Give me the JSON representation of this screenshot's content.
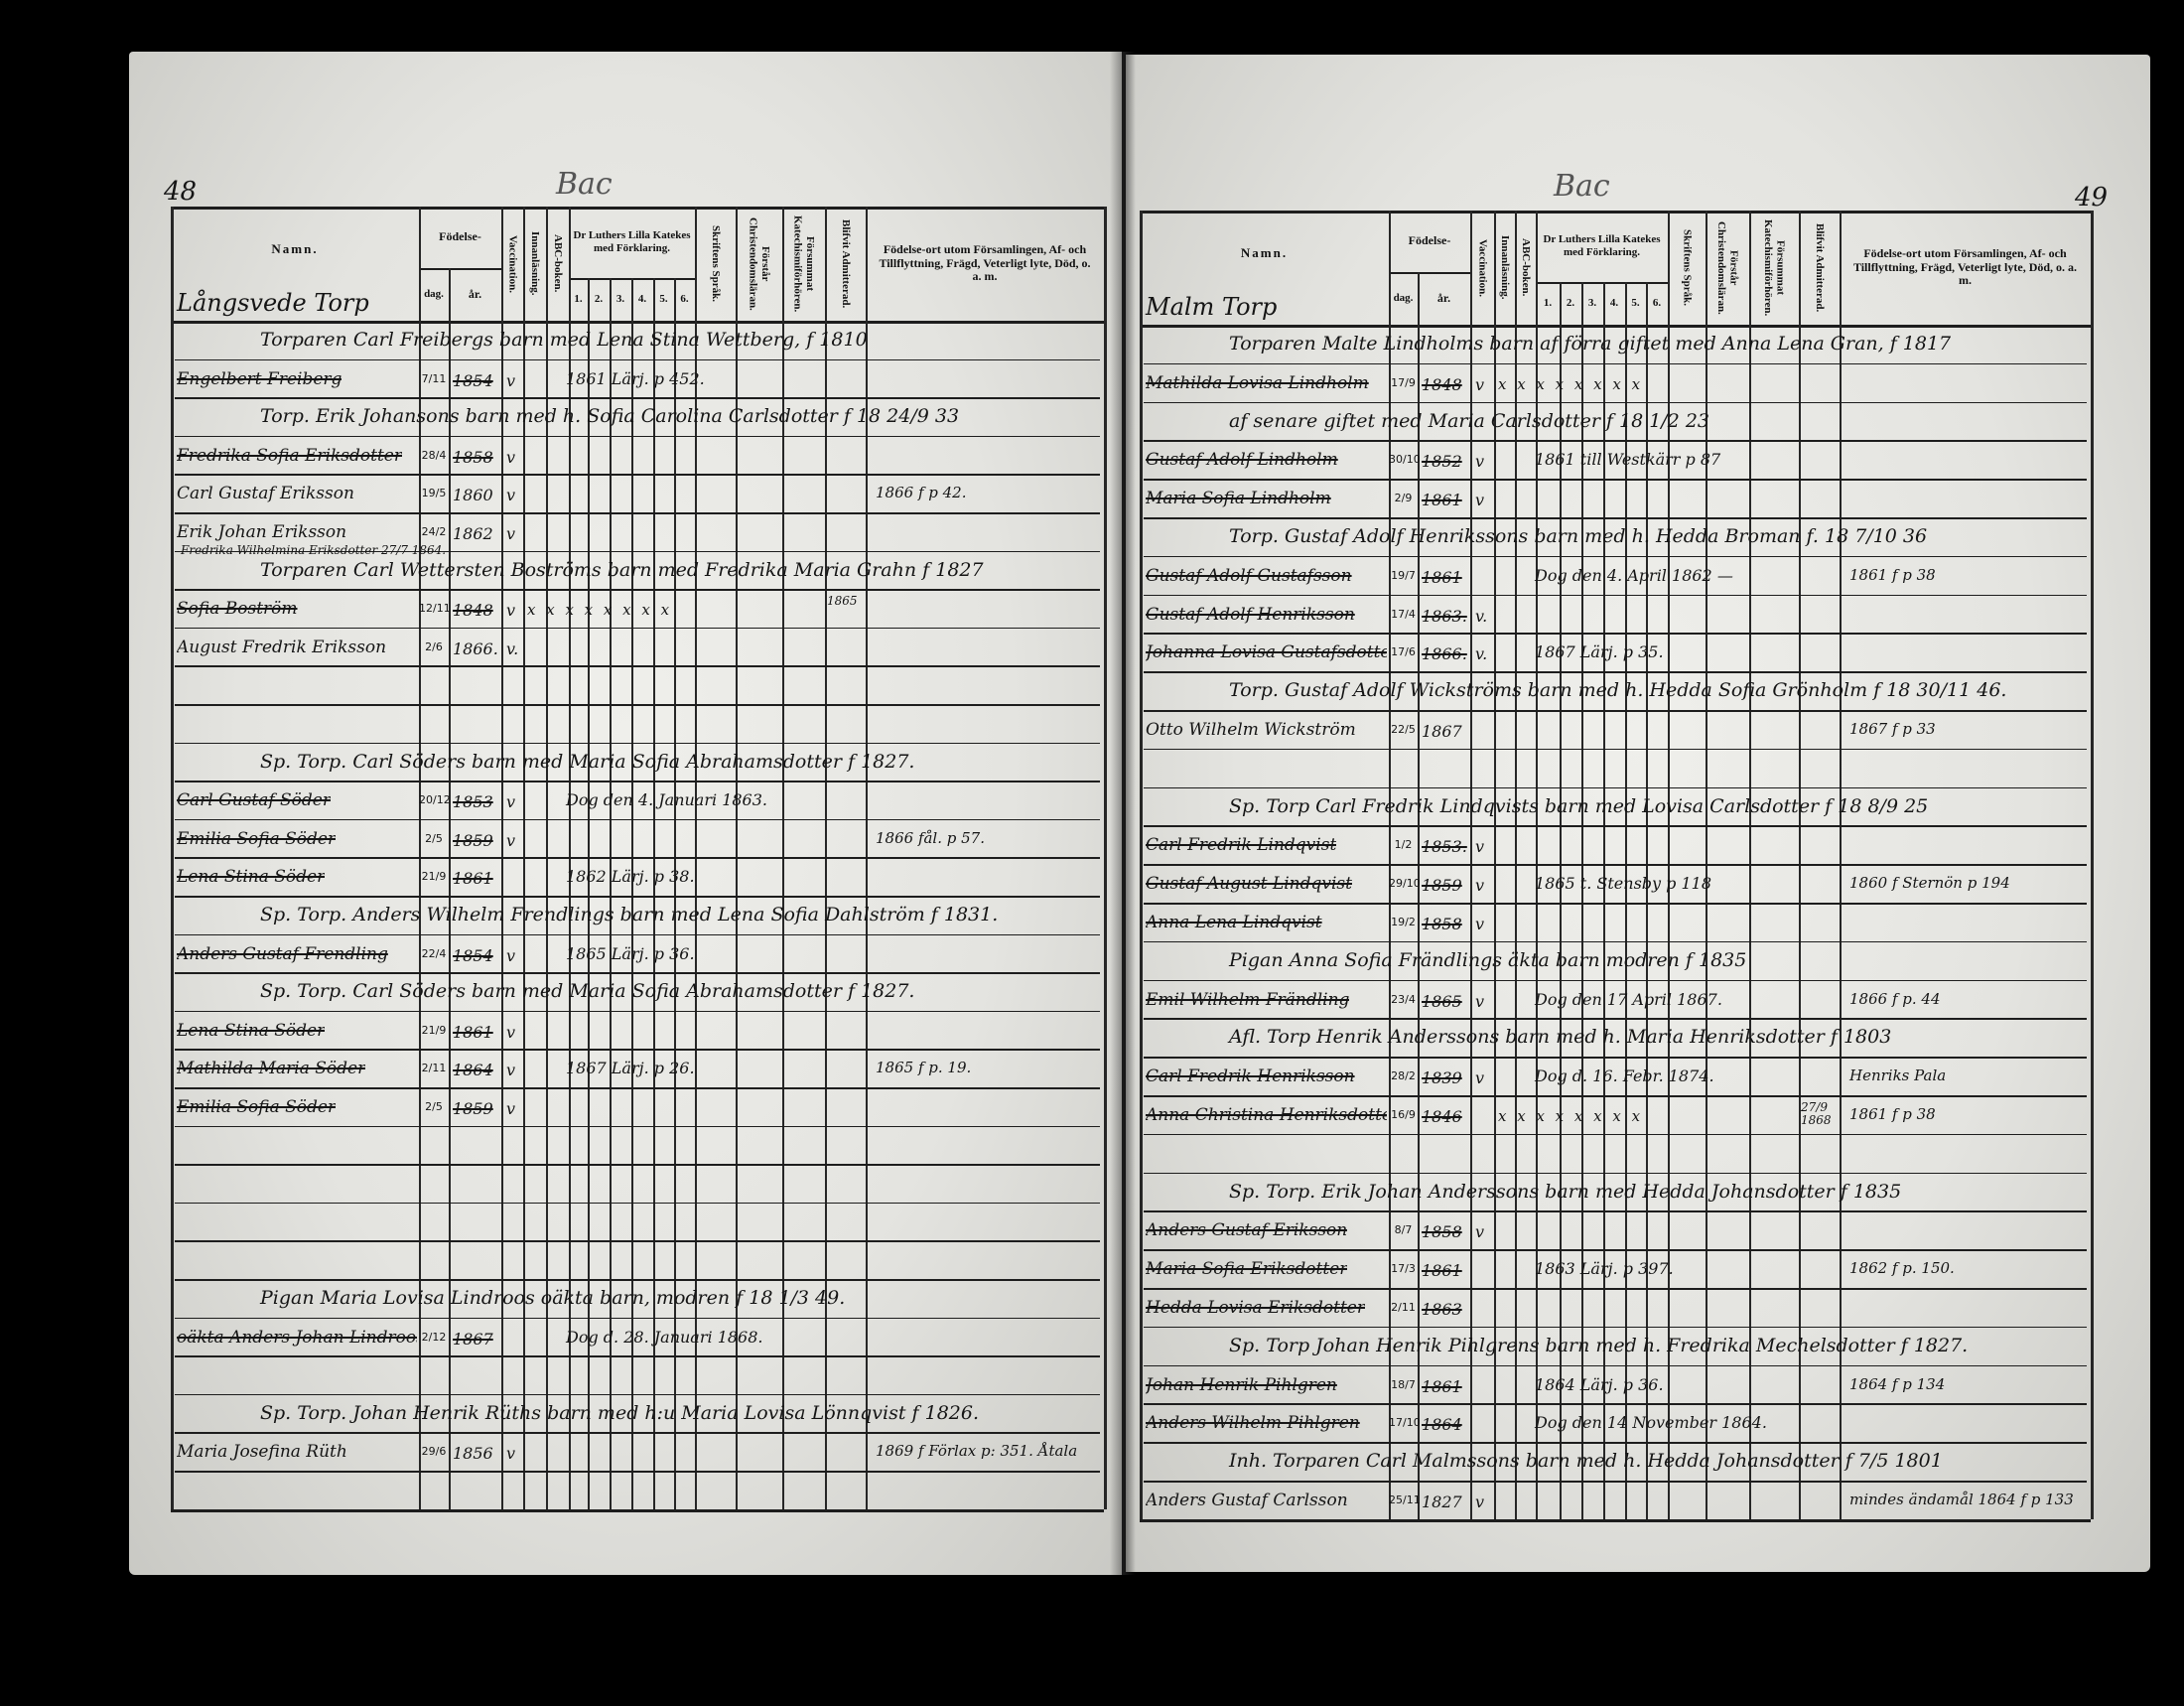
{
  "headers": {
    "namn": "Namn.",
    "fodelse": "Födelse-",
    "dag": "dag.",
    "ar": "år.",
    "vaccination": "Vaccination.",
    "innanlasning": "Innanläsning.",
    "abc": "ABC-boken.",
    "katekes": "Dr Luthers Lilla Katekes med Förklaring.",
    "katekes_parts": [
      "1.",
      "2.",
      "3.",
      "4.",
      "5.",
      "6."
    ],
    "skriftens": "Skriftens Språk.",
    "forstar": "Förstår Christendomsläran.",
    "forsummat": "Försummat Katechismiförhören.",
    "blifvit": "Blifvit Admitterad.",
    "fodelseort": "Födelse-ort utom Församlingen, Af- och Tillflyttning, Frägd, Veterligt lyte, Död, o. a. m."
  },
  "left_page": {
    "page_number": "48",
    "top_note": "Bac",
    "place": "Långsvede Torp",
    "rows": [
      {
        "type": "family",
        "text": "Torparen Carl Freibergs barn med Lena Stina Wettberg, f 1810"
      },
      {
        "type": "person",
        "name": "Engelbert Freiberg",
        "dag": "7/11",
        "ar": "1854",
        "vacc": "v",
        "mid": "1861 Lärj. p 452.",
        "struck": true
      },
      {
        "type": "family",
        "text": "Torp. Erik Johansons barn med h. Sofia Carolina Carlsdotter f 18 24/9 33"
      },
      {
        "type": "person",
        "name": "Fredrika Sofia Eriksdotter",
        "dag": "28/4",
        "ar": "1858",
        "vacc": "v",
        "struck": true
      },
      {
        "type": "person",
        "name": "Carl Gustaf Eriksson",
        "dag": "19/5",
        "ar": "1860",
        "vacc": "v",
        "remark": "1866 f p 42."
      },
      {
        "type": "person",
        "name": "Erik Johan Eriksson",
        "dag": "24/2",
        "ar": "1862",
        "vacc": "v",
        "extra": "Fredrika Wilhelmina Eriksdotter  27/7 1864."
      },
      {
        "type": "family",
        "text": "Torparen Carl Wettersten Boströms barn med Fredrika Maria Grahn f 1827"
      },
      {
        "type": "person",
        "name": "Sofia Boström",
        "dag": "12/11",
        "ar": "1848",
        "vacc": "v",
        "marks": "x x x x x x x x",
        "blifvit": "1865",
        "struck": true
      },
      {
        "type": "person",
        "name": "August Fredrik Eriksson",
        "dag": "2/6",
        "ar": "1866.",
        "vacc": "v."
      },
      {},
      {},
      {
        "type": "family",
        "text": "Sp. Torp. Carl Söders barn med Maria Sofia Abrahamsdotter f 1827."
      },
      {
        "type": "person",
        "name": "Carl Gustaf Söder",
        "dag": "20/12",
        "ar": "1853",
        "vacc": "v",
        "mid": "Dog den 4. Januari 1863.",
        "struck": true
      },
      {
        "type": "person",
        "name": "Emilia Sofia Söder",
        "dag": "2/5",
        "ar": "1859",
        "vacc": "v",
        "remark": "1866 fål. p 57.",
        "struck": true
      },
      {
        "type": "person",
        "name": "Lena Stina Söder",
        "dag": "21/9",
        "ar": "1861",
        "mid": "1862 Lärj. p 38.",
        "struck": true
      },
      {
        "type": "family",
        "text": "Sp. Torp. Anders Wilhelm Frendlings barn med Lena Sofia Dahlström f 1831."
      },
      {
        "type": "person",
        "name": "Anders Gustaf Frendling",
        "dag": "22/4",
        "ar": "1854",
        "vacc": "v",
        "mid": "1865 Lärj. p 36.",
        "struck": true
      },
      {
        "type": "family",
        "text": "Sp. Torp. Carl Söders barn med Maria Sofia Abrahamsdotter f 1827."
      },
      {
        "type": "person",
        "name": "Lena Stina Söder",
        "dag": "21/9",
        "ar": "1861",
        "vacc": "v",
        "struck": true
      },
      {
        "type": "person",
        "name": "Mathilda Maria Söder",
        "dag": "2/11",
        "ar": "1864",
        "vacc": "v",
        "mid": "1867 Lärj. p 26.",
        "remark": "1865 f p. 19.",
        "struck": true
      },
      {
        "type": "person",
        "name": "Emilia Sofia Söder",
        "dag": "2/5",
        "ar": "1859",
        "vacc": "v",
        "struck": true
      },
      {},
      {},
      {},
      {},
      {
        "type": "family",
        "text": "Pigan Maria Lovisa Lindroos oäkta barn, modren f 18 1/3 49."
      },
      {
        "type": "person",
        "name": "oäkta Anders Johan Lindroos",
        "dag": "2/12",
        "ar": "1867",
        "mid": "Dog d. 28. Januari 1868.",
        "struck": true
      },
      {},
      {
        "type": "family",
        "text": "Sp. Torp. Johan Henrik Rüths barn med h:u Maria Lovisa Lönnqvist f 1826."
      },
      {
        "type": "person",
        "name": "Maria Josefina Rüth",
        "dag": "29/6",
        "ar": "1856",
        "vacc": "v",
        "remark": "1869 f Förlax p: 351. Åtala"
      },
      {}
    ]
  },
  "right_page": {
    "page_number": "49",
    "top_note": "Bac",
    "place": "Malm Torp",
    "rows": [
      {
        "type": "family",
        "text": "Torparen Malte Lindholms barn af förra giftet med Anna Lena Gran, f 1817"
      },
      {
        "type": "person",
        "name": "Mathilda Lovisa Lindholm",
        "dag": "17/9",
        "ar": "1848",
        "vacc": "v",
        "marks": "x x x x x x x x",
        "struck": true
      },
      {
        "type": "family",
        "text": "af senare giftet med Maria Carlsdotter f 18 1/2 23"
      },
      {
        "type": "person",
        "name": "Gustaf Adolf Lindholm",
        "dag": "30/10",
        "ar": "1852",
        "vacc": "v",
        "mid": "1861 till Westkärr p 87",
        "struck": true
      },
      {
        "type": "person",
        "name": "Maria Sofia Lindholm",
        "dag": "2/9",
        "ar": "1861",
        "vacc": "v",
        "struck": true
      },
      {
        "type": "family",
        "text": "Torp. Gustaf Adolf Henrikssons barn med h. Hedda Broman f. 18 7/10 36"
      },
      {
        "type": "person",
        "name": "Gustaf Adolf Gustafsson",
        "dag": "19/7",
        "ar": "1861",
        "mid": "Dog den 4. April 1862 —",
        "remark": "1861 f p 38",
        "struck": true
      },
      {
        "type": "person",
        "name": "Gustaf Adolf Henriksson",
        "dag": "17/4",
        "ar": "1863.",
        "vacc": "v.",
        "struck": true
      },
      {
        "type": "person",
        "name": "Johanna Lovisa Gustafsdotter",
        "dag": "17/6",
        "ar": "1866.",
        "vacc": "v.",
        "mid": "1867 Lärj. p 35.",
        "struck": true
      },
      {
        "type": "family",
        "text": "Torp. Gustaf Adolf Wickströms barn med h. Hedda Sofia Grönholm f 18 30/11 46."
      },
      {
        "type": "person",
        "name": "Otto Wilhelm Wickström",
        "dag": "22/5",
        "ar": "1867",
        "remark": "1867 f p 33"
      },
      {},
      {
        "type": "family",
        "text": "Sp. Torp Carl Fredrik Lindqvists barn med Lovisa Carlsdotter f 18 8/9 25"
      },
      {
        "type": "person",
        "name": "Carl Fredrik Lindqvist",
        "dag": "1/2",
        "ar": "1853.",
        "vacc": "v",
        "struck": true
      },
      {
        "type": "person",
        "name": "Gustaf August Lindqvist",
        "dag": "29/10",
        "ar": "1859",
        "vacc": "v",
        "mid": "1865 t. Stensby p 118",
        "remark": "1860 f Sternön p 194",
        "struck": true
      },
      {
        "type": "person",
        "name": "Anna Lena Lindqvist",
        "dag": "19/2",
        "ar": "1858",
        "vacc": "v",
        "struck": true
      },
      {
        "type": "family",
        "text": "Pigan Anna Sofia Frändlings äkta barn modren f 1835"
      },
      {
        "type": "person",
        "name": "Emil Wilhelm Frändling",
        "dag": "23/4",
        "ar": "1865",
        "vacc": "v",
        "mid": "Dog den 17 April 1867.",
        "remark": "1866 f p. 44",
        "struck": true
      },
      {
        "type": "family",
        "text": "Afl. Torp Henrik Anderssons barn med h. Maria Henriksdotter f 1803"
      },
      {
        "type": "person",
        "name": "Carl Fredrik Henriksson",
        "dag": "28/2",
        "ar": "1839",
        "vacc": "v",
        "mid": "Dog d. 16. Febr. 1874.",
        "remark": "Henriks Pala",
        "struck": true
      },
      {
        "type": "person",
        "name": "Anna Christina Henriksdotter",
        "dag": "16/9",
        "ar": "1846",
        "marks": "x x x x x x x x",
        "blifvit": "27/9 1868",
        "remark": "1861 f p 38",
        "struck": true
      },
      {},
      {
        "type": "family",
        "text": "Sp. Torp. Erik Johan Anderssons barn med Hedda Johansdotter f 1835"
      },
      {
        "type": "person",
        "name": "Anders Gustaf Eriksson",
        "dag": "8/7",
        "ar": "1858",
        "vacc": "v",
        "struck": true
      },
      {
        "type": "person",
        "name": "Maria Sofia Eriksdotter",
        "dag": "17/3",
        "ar": "1861",
        "mid": "1863 Lärj. p 397.",
        "remark": "1862 f p. 150.",
        "struck": true
      },
      {
        "type": "person",
        "name": "Hedda Lovisa Eriksdotter",
        "dag": "2/11",
        "ar": "1863",
        "struck": true
      },
      {
        "type": "family",
        "text": "Sp. Torp Johan Henrik Pihlgrens barn med h. Fredrika Mechelsdotter f 1827."
      },
      {
        "type": "person",
        "name": "Johan Henrik Pihlgren",
        "dag": "18/7",
        "ar": "1861",
        "mid": "1864 Lärj. p 36.",
        "remark": "1864 f p 134",
        "struck": true
      },
      {
        "type": "person",
        "name": "Anders Wilhelm Pihlgren",
        "dag": "17/10",
        "ar": "1864",
        "mid": "Dog den 14 November 1864.",
        "struck": true
      },
      {
        "type": "family",
        "text": "Inh. Torparen Carl Malmssons barn med h. Hedda Johansdotter f 7/5 1801"
      },
      {
        "type": "person",
        "name": "Anders Gustaf Carlsson",
        "dag": "25/11",
        "ar": "1827",
        "vacc": "v",
        "remark": "mindes ändamål 1864 f p 133"
      }
    ]
  }
}
